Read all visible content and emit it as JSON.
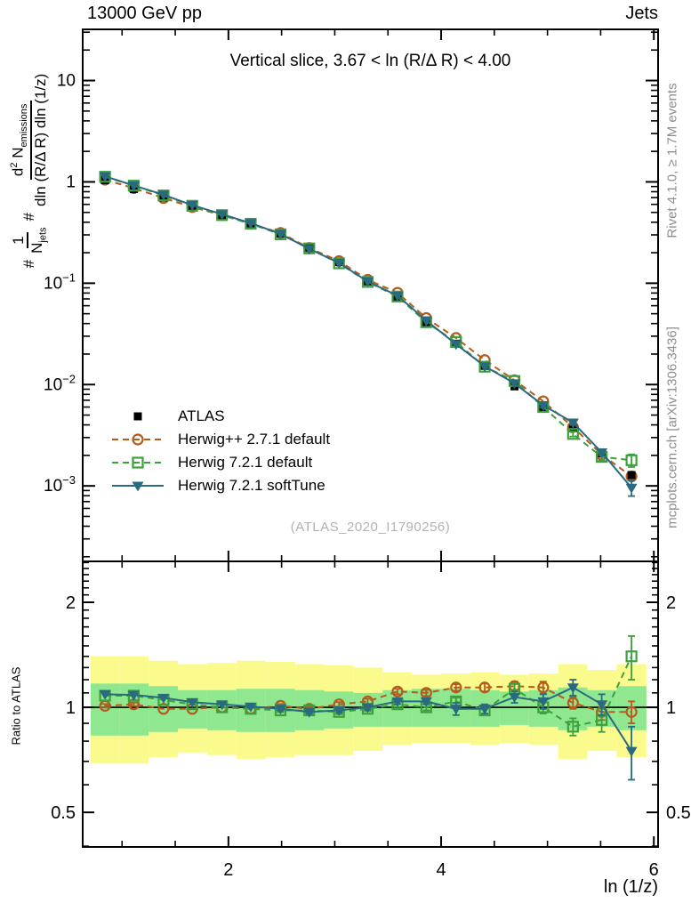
{
  "header": {
    "left_title": "13000 GeV pp",
    "right_title": "Jets"
  },
  "plot_title": "Vertical slice, 3.67 < ln (R/Δ R) < 4.00",
  "x_axis_label": "ln (1/z)",
  "ratio_label": "Ratio to ATLAS",
  "watermark": "(ATLAS_2020_I1790256)",
  "side_notes": {
    "top": "Rivet 4.1.0, ≥ 1.7M events",
    "bottom": "mcplots.cern.ch [arXiv:1306.3436]"
  },
  "y_axis_label": {
    "hash1": "#",
    "frac1_num": "1",
    "frac1_den": "N",
    "frac1_den_sub": "jets",
    "hash2": "#",
    "frac2_num_a": "d",
    "frac2_num_sup": "2",
    "frac2_num_b": " N",
    "frac2_num_sub": "emissions",
    "frac2_den": "dln (R/Δ R) dln (1/z)"
  },
  "legend": {
    "items": [
      {
        "label": "ATLAS"
      },
      {
        "label": "Herwig++ 2.7.1 default"
      },
      {
        "label": "Herwig 7.2.1 default"
      },
      {
        "label": "Herwig 7.2.1 softTune"
      }
    ]
  },
  "colors": {
    "data": "#000000",
    "herwigpp": "#b35c1e",
    "herwig7_default": "#3da03d",
    "herwig7_softtune": "#2a6a80",
    "band_outer": "#fbfb8d",
    "band_inner": "#8fe88f"
  },
  "chart_data": {
    "type": "line",
    "title": "Vertical slice, 3.67 < ln (R/Δ R) < 4.00",
    "xlabel": "ln (1/z)",
    "ylabel": "(1/N_jets) d^2 N_emissions / (dln (R/Δ R) dln (1/z))",
    "legend_position": "upper-left-inside",
    "grid": false,
    "x_range": [
      0.63,
      6.04
    ],
    "main_y_range": [
      0.00018,
      32
    ],
    "main_y_scale": "log",
    "ratio_y_range": [
      0.398,
      2.62
    ],
    "ratio_y_scale": "log",
    "x_ticks_major": [
      {
        "v": 2,
        "t": "2"
      },
      {
        "v": 4,
        "t": "4"
      },
      {
        "v": 6,
        "t": "6"
      }
    ],
    "x_ticks_minor": [
      1,
      1.5,
      2.5,
      3,
      3.5,
      4.5,
      5,
      5.5
    ],
    "main_y_ticks": [
      {
        "v": 10,
        "base": "10",
        "exp": ""
      },
      {
        "v": 1,
        "base": "1",
        "exp": ""
      },
      {
        "v": 0.1,
        "base": "10",
        "exp": "−1"
      },
      {
        "v": 0.01,
        "base": "10",
        "exp": "−2"
      },
      {
        "v": 0.001,
        "base": "10",
        "exp": "−3"
      }
    ],
    "ratio_y_ticks": [
      {
        "v": 2,
        "t": "2"
      },
      {
        "v": 1,
        "t": "1"
      },
      {
        "v": 0.5,
        "t": "0.5"
      }
    ],
    "ratio_y_minor": [
      0.4,
      0.6,
      0.7,
      0.8,
      0.9,
      1.1,
      1.2,
      1.3,
      1.4,
      1.5,
      1.6,
      1.7,
      1.8,
      1.9,
      2.1,
      2.2,
      2.3,
      2.4,
      2.5,
      2.6
    ],
    "x": [
      0.84,
      1.11,
      1.39,
      1.66,
      1.94,
      2.21,
      2.49,
      2.76,
      3.04,
      3.31,
      3.59,
      3.86,
      4.14,
      4.41,
      4.69,
      4.96,
      5.24,
      5.51,
      5.79
    ],
    "data": {
      "name": "ATLAS",
      "y": [
        1.04,
        0.85,
        0.7,
        0.57,
        0.47,
        0.39,
        0.31,
        0.225,
        0.162,
        0.104,
        0.0725,
        0.0412,
        0.0253,
        0.0153,
        0.0096,
        0.006,
        0.0037,
        0.0021,
        0.00128
      ]
    },
    "series": [
      {
        "name": "Herwig++ 2.7.1 default",
        "color": "#b35c1e",
        "marker": "circle-open",
        "line": "dash",
        "ratio": [
          1.01,
          1.02,
          0.99,
          0.99,
          1.0,
          0.99,
          1.01,
          0.99,
          1.02,
          1.04,
          1.11,
          1.1,
          1.14,
          1.14,
          1.15,
          1.14,
          1.03,
          0.97,
          0.97
        ],
        "ratio_err": [
          0.012,
          0.012,
          0.01,
          0.01,
          0.01,
          0.01,
          0.012,
          0.012,
          0.015,
          0.018,
          0.02,
          0.022,
          0.025,
          0.03,
          0.035,
          0.045,
          0.04,
          0.05,
          0.07
        ]
      },
      {
        "name": "Herwig 7.2.1 default",
        "color": "#3da03d",
        "marker": "square-open",
        "line": "dash",
        "ratio": [
          1.08,
          1.08,
          1.05,
          1.02,
          1.0,
          0.99,
          0.98,
          0.98,
          0.97,
          0.99,
          1.02,
          1.0,
          1.04,
          0.98,
          1.13,
          1.0,
          0.88,
          0.92,
          1.4
        ],
        "ratio_err": [
          0.012,
          0.012,
          0.01,
          0.01,
          0.01,
          0.01,
          0.012,
          0.012,
          0.015,
          0.015,
          0.018,
          0.02,
          0.025,
          0.03,
          0.04,
          0.04,
          0.05,
          0.07,
          0.2
        ]
      },
      {
        "name": "Herwig 7.2.1 softTune",
        "color": "#2a6a80",
        "marker": "triangle-down-filled",
        "line": "solid",
        "ratio": [
          1.09,
          1.085,
          1.065,
          1.035,
          1.02,
          1.005,
          0.99,
          0.97,
          0.98,
          1.0,
          1.04,
          1.04,
          0.99,
          0.99,
          1.07,
          1.04,
          1.14,
          1.02,
          0.75
        ],
        "ratio_err": [
          0.012,
          0.012,
          0.01,
          0.01,
          0.01,
          0.01,
          0.012,
          0.012,
          0.015,
          0.015,
          0.018,
          0.02,
          0.04,
          0.03,
          0.04,
          0.05,
          0.06,
          0.07,
          0.13
        ]
      }
    ],
    "bands": {
      "description": "data uncertainty bands in ratio panel, stepped per bin",
      "yellow_hi": [
        1.4,
        1.4,
        1.36,
        1.33,
        1.34,
        1.36,
        1.35,
        1.33,
        1.32,
        1.3,
        1.26,
        1.24,
        1.25,
        1.26,
        1.24,
        1.25,
        1.33,
        1.28,
        1.33
      ],
      "yellow_lo": [
        0.69,
        0.69,
        0.72,
        0.74,
        0.73,
        0.71,
        0.72,
        0.73,
        0.73,
        0.75,
        0.78,
        0.79,
        0.79,
        0.78,
        0.79,
        0.78,
        0.71,
        0.75,
        0.72
      ],
      "green_hi": [
        1.17,
        1.17,
        1.15,
        1.12,
        1.12,
        1.13,
        1.13,
        1.12,
        1.11,
        1.1,
        1.12,
        1.13,
        1.13,
        1.12,
        1.11,
        1.12,
        1.14,
        1.12,
        1.15
      ],
      "green_lo": [
        0.83,
        0.83,
        0.85,
        0.87,
        0.86,
        0.85,
        0.85,
        0.86,
        0.87,
        0.88,
        0.88,
        0.88,
        0.88,
        0.88,
        0.89,
        0.88,
        0.86,
        0.88,
        0.86
      ]
    }
  }
}
